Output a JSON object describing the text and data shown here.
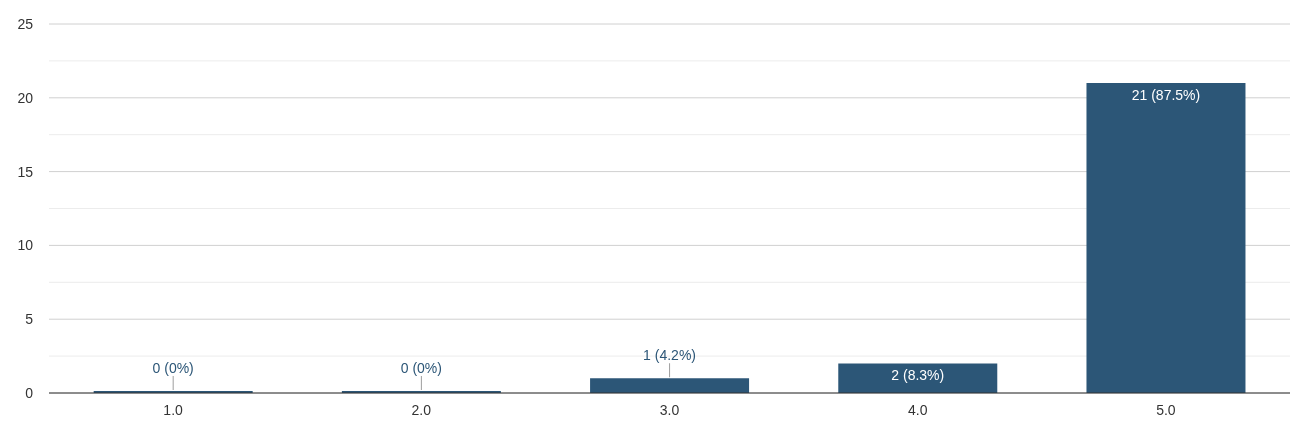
{
  "chart_data": {
    "type": "bar",
    "categories": [
      "1.0",
      "2.0",
      "3.0",
      "4.0",
      "5.0"
    ],
    "values": [
      0,
      0,
      1,
      2,
      21
    ],
    "color": "#2c5677",
    "value_labels": [
      "0 (0%)",
      "0 (0%)",
      "1 (4.2%)",
      "2 (8.3%)",
      "21 (87.5%)"
    ],
    "ylim": [
      0,
      25
    ],
    "yticks": [
      0,
      {
        "value": 2.5,
        "label": null
      },
      5,
      {
        "value": 7.5,
        "label": null
      },
      10,
      {
        "value": 12.5,
        "label": null
      },
      15,
      {
        "value": 17.5,
        "label": null
      },
      20,
      {
        "value": 22.5,
        "label": null
      },
      25
    ],
    "grid": "y"
  }
}
